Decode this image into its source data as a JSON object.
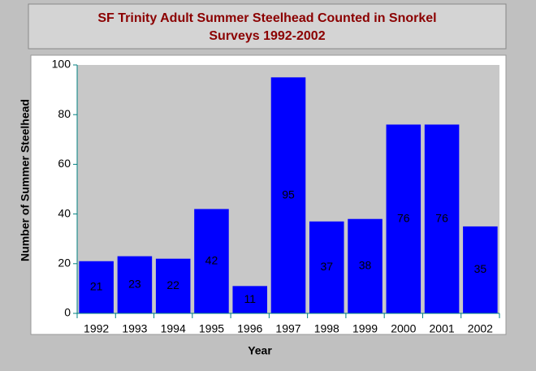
{
  "chart_data": {
    "type": "bar",
    "title": [
      "SF Trinity Adult Summer Steelhead Counted in Snorkel",
      "Surveys 1992-2002"
    ],
    "x_label": "Year",
    "y_label": "Number of Summer Steelhead",
    "categories": [
      "1992",
      "1993",
      "1994",
      "1995",
      "1996",
      "1997",
      "1998",
      "1999",
      "2000",
      "2001",
      "2002"
    ],
    "values": [
      21,
      23,
      22,
      42,
      11,
      95,
      37,
      38,
      76,
      76,
      35
    ],
    "color": "#0000ff",
    "ylim": [
      0,
      100
    ],
    "yticks": [
      0,
      20,
      40,
      60,
      80,
      100
    ]
  }
}
